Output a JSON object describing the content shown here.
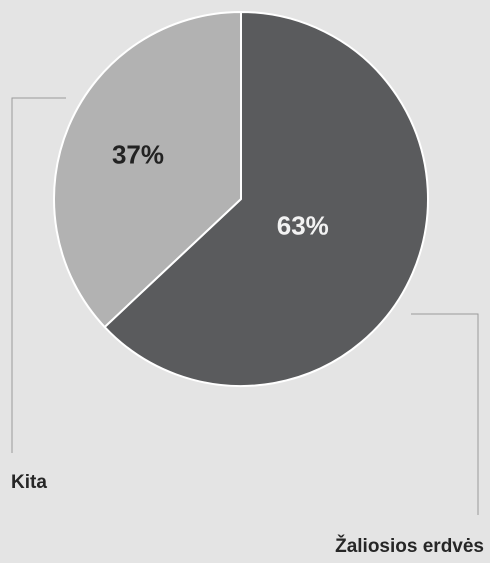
{
  "chart_data": {
    "type": "pie",
    "slices": [
      {
        "label": "Žaliosios erdvės",
        "value": 63,
        "display": "63%",
        "color": "#5a5b5d",
        "text_color": "#f2f2f2"
      },
      {
        "label": "Kita",
        "value": 37,
        "display": "37%",
        "color": "#b2b2b2",
        "text_color": "#222222"
      }
    ],
    "colors": {
      "background": "#e4e4e4",
      "slice_border": "#ffffff",
      "leader_line": "#9a9a9a"
    }
  }
}
